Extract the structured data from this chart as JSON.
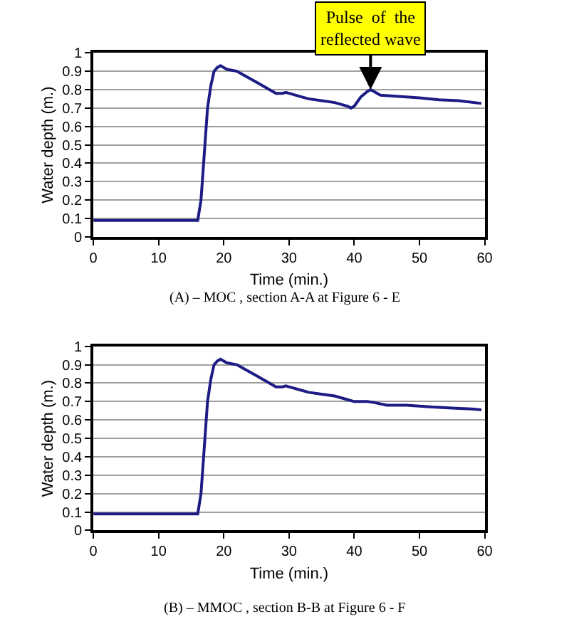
{
  "chart_data": [
    {
      "type": "line",
      "xlabel": "Time (min.)",
      "ylabel": "Water depth (m.)",
      "xlim": [
        0,
        60
      ],
      "ylim": [
        0,
        1
      ],
      "xticks": [
        0,
        10,
        20,
        30,
        40,
        50,
        60
      ],
      "yticks": [
        0,
        0.1,
        0.2,
        0.3,
        0.4,
        0.5,
        0.6,
        0.7,
        0.8,
        0.9,
        1
      ],
      "grid": "y",
      "x": [
        0,
        16,
        16.5,
        17,
        17.5,
        18,
        18.5,
        19,
        19.5,
        20,
        20.5,
        22,
        23,
        25,
        27,
        28,
        29,
        29.5,
        30,
        32,
        33,
        35,
        37,
        39,
        39.5,
        40,
        41,
        42,
        42.5,
        43,
        44,
        46,
        50,
        53,
        56,
        59.5
      ],
      "series": [
        {
          "color": "#1c1c84",
          "values": [
            0.09,
            0.09,
            0.2,
            0.45,
            0.7,
            0.82,
            0.9,
            0.92,
            0.93,
            0.92,
            0.91,
            0.9,
            0.88,
            0.84,
            0.8,
            0.78,
            0.78,
            0.785,
            0.78,
            0.76,
            0.75,
            0.74,
            0.73,
            0.71,
            0.7,
            0.71,
            0.76,
            0.79,
            0.8,
            0.79,
            0.77,
            0.765,
            0.755,
            0.745,
            0.74,
            0.725
          ]
        }
      ],
      "annotations": [
        {
          "text": "Pulse  of  the\nreflected wave",
          "x": 42.5,
          "y": 0.8
        },
        "(A) – MOC , section A-A at Figure 6 - E"
      ]
    },
    {
      "type": "line",
      "xlabel": "Time (min.)",
      "ylabel": "Water depth (m.)",
      "xlim": [
        0,
        60
      ],
      "ylim": [
        0,
        1
      ],
      "xticks": [
        0,
        10,
        20,
        30,
        40,
        50,
        60
      ],
      "yticks": [
        0,
        0.1,
        0.2,
        0.3,
        0.4,
        0.5,
        0.6,
        0.7,
        0.8,
        0.9,
        1
      ],
      "grid": "y",
      "x": [
        0,
        16,
        16.5,
        17,
        17.5,
        18,
        18.5,
        19,
        19.5,
        20,
        20.5,
        22,
        23,
        25,
        27,
        28,
        29,
        29.5,
        30,
        32,
        33,
        35,
        37,
        39,
        40,
        42,
        43,
        45,
        48,
        50,
        52,
        55,
        58,
        59.5
      ],
      "series": [
        {
          "color": "#1c1c84",
          "values": [
            0.09,
            0.09,
            0.2,
            0.45,
            0.7,
            0.82,
            0.9,
            0.92,
            0.93,
            0.92,
            0.91,
            0.9,
            0.88,
            0.84,
            0.8,
            0.78,
            0.78,
            0.785,
            0.78,
            0.76,
            0.75,
            0.74,
            0.73,
            0.71,
            0.7,
            0.7,
            0.695,
            0.68,
            0.68,
            0.675,
            0.67,
            0.665,
            0.66,
            0.655
          ]
        }
      ],
      "annotations": [
        "(B) – MMOC , section B-B at Figure 6 - F"
      ]
    }
  ]
}
